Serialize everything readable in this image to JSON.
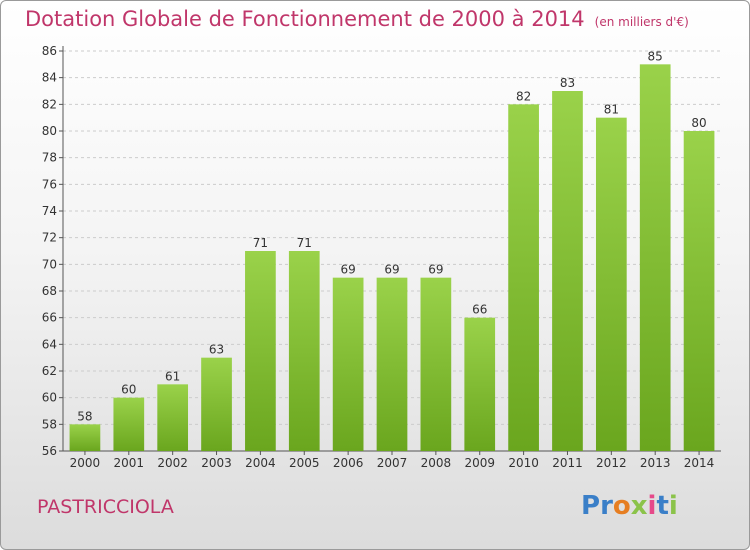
{
  "header": {
    "title": "Dotation Globale de Fonctionnement de 2000 à 2014",
    "subtitle": "(en milliers d'€)"
  },
  "footer": {
    "commune": "PASTRICCIOLA",
    "logo": [
      "P",
      "r",
      "o",
      "x",
      "i",
      "t",
      "i"
    ],
    "logo_colors": [
      "#3a7fc8",
      "#3a7fc8",
      "#e67e22",
      "#8bc34a",
      "#e64a8a",
      "#3a7fc8",
      "#8bc34a"
    ]
  },
  "colors": {
    "title": "#c0366a",
    "bar_light": "#9ad24a",
    "bar_dark": "#6aa61e",
    "grid": "#cccccc"
  },
  "chart_data": {
    "type": "bar",
    "title": "Dotation Globale de Fonctionnement de 2000 à 2014",
    "subtitle": "(en milliers d'€)",
    "xlabel": "",
    "ylabel": "",
    "categories": [
      "2000",
      "2001",
      "2002",
      "2003",
      "2004",
      "2005",
      "2006",
      "2007",
      "2008",
      "2009",
      "2010",
      "2011",
      "2012",
      "2013",
      "2014"
    ],
    "values": [
      58,
      60,
      61,
      63,
      71,
      71,
      69,
      69,
      69,
      66,
      82,
      83,
      81,
      85,
      80
    ],
    "ylim": [
      56,
      86
    ],
    "ytick_step": 2,
    "grid": "horizontal dashed",
    "legend": "none"
  }
}
